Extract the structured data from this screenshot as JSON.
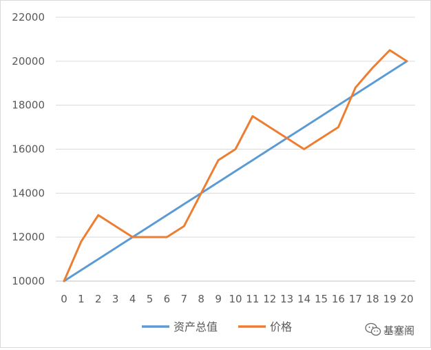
{
  "chart_data": {
    "type": "line",
    "title": "",
    "xlabel": "",
    "ylabel": "",
    "x": [
      0,
      1,
      2,
      3,
      4,
      5,
      6,
      7,
      8,
      9,
      10,
      11,
      12,
      13,
      14,
      15,
      16,
      17,
      18,
      19,
      20
    ],
    "ylim": [
      10000,
      22000
    ],
    "yticks": [
      10000,
      12000,
      14000,
      16000,
      18000,
      20000,
      22000
    ],
    "grid": "horizontal",
    "legend": "bottom",
    "series": [
      {
        "name": "资产总值",
        "color": "#5b9bd5",
        "values": [
          10000,
          10500,
          11000,
          11500,
          12000,
          12500,
          13000,
          13500,
          14000,
          14500,
          15000,
          15500,
          16000,
          16500,
          17000,
          17500,
          18000,
          18500,
          19000,
          19500,
          20000
        ]
      },
      {
        "name": "价格",
        "color": "#ed7d31",
        "values": [
          10000,
          11800,
          13000,
          12500,
          12000,
          12000,
          12000,
          12500,
          14000,
          15500,
          16000,
          17500,
          17000,
          16500,
          16000,
          16500,
          17000,
          18800,
          19700,
          20500,
          20000
        ]
      }
    ]
  },
  "watermark": {
    "text": "基塞阁",
    "icon": "wechat-icon"
  }
}
